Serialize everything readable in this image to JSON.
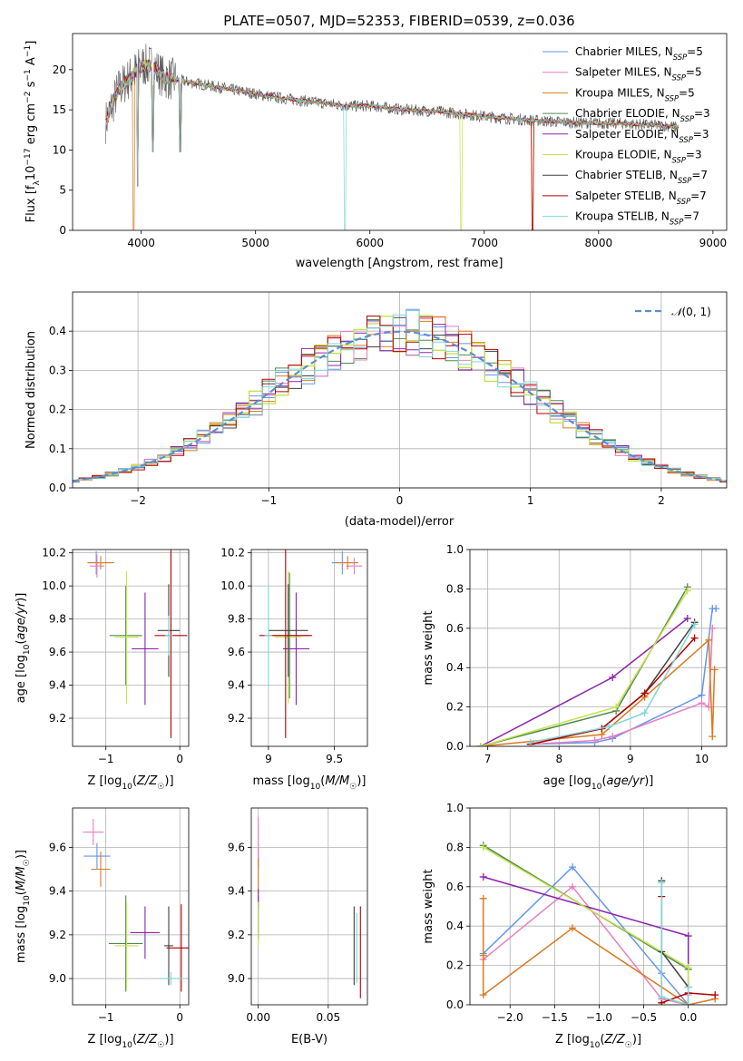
{
  "figure": {
    "title": "PLATE=0507, MJD=52353, FIBERID=0539, z=0.036"
  },
  "models": [
    {
      "name": "Chabrier MILES",
      "nssp": "5",
      "color": "#6495ed"
    },
    {
      "name": "Salpeter MILES",
      "nssp": "5",
      "color": "#e87fbf"
    },
    {
      "name": "Kroupa MILES",
      "nssp": "5",
      "color": "#d97a1f"
    },
    {
      "name": "Chabrier ELODIE",
      "nssp": "3",
      "color": "#4d8a4d"
    },
    {
      "name": "Salpeter ELODIE",
      "nssp": "3",
      "color": "#8e24aa"
    },
    {
      "name": "Kroupa ELODIE",
      "nssp": "3",
      "color": "#c6e24a"
    },
    {
      "name": "Chabrier STELIB",
      "nssp": "7",
      "color": "#404040"
    },
    {
      "name": "Salpeter STELIB",
      "nssp": "7",
      "color": "#b30000"
    },
    {
      "name": "Kroupa STELIB",
      "nssp": "7",
      "color": "#7fd6d6"
    }
  ],
  "chart_data": [
    {
      "id": "spectrum",
      "type": "line",
      "xlabel": "wavelength [Angstrom, rest frame]",
      "ylabel": "Flux [f_λ 10^-17 erg cm^-2 s^-1 A^-1]",
      "xlim": [
        3400,
        9120
      ],
      "ylim": [
        0,
        24.5
      ],
      "xticks": [
        4000,
        5000,
        6000,
        7000,
        8000,
        9000
      ],
      "yticks": [
        0,
        5,
        10,
        15,
        20
      ],
      "grid": false,
      "legend": "top-right",
      "envelope": {
        "x": [
          3690,
          3800,
          3900,
          4000,
          4100,
          4200,
          4400,
          4600,
          4800,
          5000,
          5200,
          5500,
          5800,
          6000,
          6300,
          6600,
          7000,
          7400,
          7800,
          8200,
          8600,
          8700
        ],
        "y": [
          13.5,
          17.5,
          19.0,
          20.5,
          20.5,
          19.0,
          18.5,
          18.0,
          17.5,
          17.0,
          16.5,
          16.0,
          15.5,
          15.5,
          15.0,
          14.8,
          14.2,
          13.7,
          13.4,
          13.3,
          13.0,
          12.8
        ]
      },
      "absorption_dips": [
        {
          "x": 3934,
          "y": 0
        },
        {
          "x": 3969,
          "y": 5.5
        },
        {
          "x": 4101,
          "y": 9.8
        },
        {
          "x": 4340,
          "y": 9.8
        },
        {
          "x": 5780,
          "y": 0
        },
        {
          "x": 6800,
          "y": 0
        },
        {
          "x": 7420,
          "y": 0
        }
      ]
    },
    {
      "id": "residuals",
      "type": "histogram",
      "xlabel": "(data-model)/error",
      "ylabel": "Normed distribution",
      "xlim": [
        -2.5,
        2.5
      ],
      "ylim": [
        0,
        0.5
      ],
      "xticks": [
        -2,
        -1,
        0,
        1,
        2
      ],
      "yticks": [
        0.0,
        0.1,
        0.2,
        0.3,
        0.4
      ],
      "grid": true,
      "legend": "top-right",
      "reference_curve": {
        "name": "N(0,1)",
        "mean": 0,
        "sigma": 1
      },
      "bin_width": 0.1
    },
    {
      "id": "age-vs-z",
      "type": "errorbar",
      "xlabel": "Z [log10(Z/Z☉)]",
      "ylabel": "age [log10(age/yr)]",
      "xlim": [
        -1.45,
        0.12
      ],
      "ylim": [
        9.03,
        10.22
      ],
      "xticks": [
        -1,
        0
      ],
      "yticks": [
        9.2,
        9.4,
        9.6,
        9.8,
        10.0,
        10.2
      ],
      "grid": true,
      "points": [
        {
          "x": -1.13,
          "y": 10.14,
          "xerr": 0.1,
          "yerr": 0.07
        },
        {
          "x": -1.12,
          "y": 10.12,
          "xerr": 0.1,
          "yerr": 0.07
        },
        {
          "x": -1.07,
          "y": 10.14,
          "xerr": 0.18,
          "yerr": 0.04
        },
        {
          "x": -0.73,
          "y": 9.7,
          "xerr": 0.22,
          "yerr": 0.3
        },
        {
          "x": -0.47,
          "y": 9.62,
          "xerr": 0.18,
          "yerr": 0.34
        },
        {
          "x": -0.72,
          "y": 9.69,
          "xerr": 0.16,
          "yerr": 0.4
        },
        {
          "x": -0.15,
          "y": 9.73,
          "xerr": 0.15,
          "yerr": 0.28
        },
        {
          "x": -0.12,
          "y": 9.7,
          "xerr": 0.22,
          "yerr": 0.62
        },
        {
          "x": -0.15,
          "y": 9.7,
          "xerr": 0.05,
          "yerr": 0.12
        }
      ]
    },
    {
      "id": "age-vs-mass",
      "type": "errorbar",
      "xlabel": "mass [log10(M/M☉)]",
      "ylabel": "",
      "xlim": [
        8.87,
        9.75
      ],
      "ylim": [
        9.03,
        10.22
      ],
      "xticks": [
        9.0,
        9.5
      ],
      "yticks": [
        9.2,
        9.4,
        9.6,
        9.8,
        10.0,
        10.2
      ],
      "grid": true,
      "points": [
        {
          "x": 9.56,
          "y": 10.14,
          "xerr": 0.08,
          "yerr": 0.07
        },
        {
          "x": 9.65,
          "y": 10.12,
          "xerr": 0.06,
          "yerr": 0.05
        },
        {
          "x": 9.6,
          "y": 10.14,
          "xerr": 0.08,
          "yerr": 0.04
        },
        {
          "x": 9.16,
          "y": 9.7,
          "xerr": 0.15,
          "yerr": 0.38
        },
        {
          "x": 9.21,
          "y": 9.62,
          "xerr": 0.1,
          "yerr": 0.34
        },
        {
          "x": 9.15,
          "y": 9.69,
          "xerr": 0.1,
          "yerr": 0.4
        },
        {
          "x": 9.15,
          "y": 9.73,
          "xerr": 0.15,
          "yerr": 0.28
        },
        {
          "x": 9.13,
          "y": 9.7,
          "xerr": 0.2,
          "yerr": 0.62
        },
        {
          "x": 9.0,
          "y": 9.7,
          "xerr": 0.03,
          "yerr": 0.31
        }
      ]
    },
    {
      "id": "mass-weight-vs-age",
      "type": "line",
      "xlabel": "age [log10(age/yr)]",
      "ylabel": "mass weight",
      "xlim": [
        6.75,
        10.35
      ],
      "ylim": [
        0,
        1.0
      ],
      "xticks": [
        7,
        8,
        9,
        10
      ],
      "yticks": [
        0.0,
        0.2,
        0.4,
        0.6,
        0.8,
        1.0
      ],
      "grid": true,
      "series": [
        {
          "model": 0,
          "x": [
            7.6,
            8.5,
            8.75,
            10.0,
            10.15,
            10.2
          ],
          "y": [
            0.01,
            0.02,
            0.04,
            0.26,
            0.7,
            0.7
          ]
        },
        {
          "model": 1,
          "x": [
            7.6,
            8.5,
            8.75,
            10.0,
            10.1,
            10.15
          ],
          "y": [
            0.01,
            0.03,
            0.05,
            0.22,
            0.2,
            0.6
          ]
        },
        {
          "model": 2,
          "x": [
            6.9,
            8.6,
            9.2,
            10.1,
            10.15,
            10.18
          ],
          "y": [
            0.0,
            0.06,
            0.25,
            0.54,
            0.05,
            0.39
          ]
        },
        {
          "model": 3,
          "x": [
            6.9,
            8.8,
            9.8
          ],
          "y": [
            0.0,
            0.18,
            0.81
          ]
        },
        {
          "model": 4,
          "x": [
            6.9,
            8.75,
            9.8
          ],
          "y": [
            0.0,
            0.35,
            0.65
          ]
        },
        {
          "model": 5,
          "x": [
            6.9,
            8.8,
            9.8
          ],
          "y": [
            0.0,
            0.2,
            0.79
          ]
        },
        {
          "model": 6,
          "x": [
            7.6,
            8.6,
            9.2,
            9.9
          ],
          "y": [
            0.01,
            0.09,
            0.27,
            0.63
          ]
        },
        {
          "model": 7,
          "x": [
            7.6,
            8.6,
            9.2,
            9.9
          ],
          "y": [
            0.01,
            0.09,
            0.27,
            0.55
          ]
        },
        {
          "model": 8,
          "x": [
            7.6,
            8.7,
            9.2,
            9.9
          ],
          "y": [
            0.02,
            0.1,
            0.17,
            0.62
          ]
        }
      ]
    },
    {
      "id": "mass-vs-z",
      "type": "errorbar",
      "xlabel": "Z [log10(Z/Z☉)]",
      "ylabel": "mass [log10(M/M☉)]",
      "xlim": [
        -1.45,
        0.12
      ],
      "ylim": [
        8.88,
        9.78
      ],
      "xticks": [
        -1,
        0
      ],
      "yticks": [
        9.0,
        9.2,
        9.4,
        9.6
      ],
      "grid": true,
      "points": [
        {
          "x": -1.12,
          "y": 9.56,
          "xerr": 0.18,
          "yerr": 0.06
        },
        {
          "x": -1.17,
          "y": 9.67,
          "xerr": 0.14,
          "yerr": 0.06
        },
        {
          "x": -1.07,
          "y": 9.5,
          "xerr": 0.13,
          "yerr": 0.08
        },
        {
          "x": -0.73,
          "y": 9.16,
          "xerr": 0.23,
          "yerr": 0.22
        },
        {
          "x": -0.47,
          "y": 9.21,
          "xerr": 0.2,
          "yerr": 0.12
        },
        {
          "x": -0.72,
          "y": 9.15,
          "xerr": 0.16,
          "yerr": 0.2
        },
        {
          "x": -0.15,
          "y": 9.15,
          "xerr": 0.06,
          "yerr": 0.18
        },
        {
          "x": 0.02,
          "y": 9.14,
          "xerr": 0.2,
          "yerr": 0.2
        },
        {
          "x": -0.12,
          "y": 9.0,
          "xerr": 0.16,
          "yerr": 0.03
        }
      ]
    },
    {
      "id": "mass-vs-ebv",
      "type": "errorbar",
      "xlabel": "E(B-V)",
      "ylabel": "",
      "xlim": [
        -0.005,
        0.078
      ],
      "ylim": [
        8.88,
        9.78
      ],
      "xticks": [
        0.0,
        0.05
      ],
      "xticklabels": [
        "0.00",
        "0.05"
      ],
      "yticks": [
        9.0,
        9.2,
        9.4,
        9.6
      ],
      "grid": true,
      "points": [
        {
          "x": 0.0,
          "y": 9.56,
          "xerr": 0.0,
          "yerr": 0.06
        },
        {
          "x": 0.0,
          "y": 9.64,
          "xerr": 0.0,
          "yerr": 0.1
        },
        {
          "x": 0.0,
          "y": 9.47,
          "xerr": 0.0,
          "yerr": 0.08
        },
        {
          "x": 0.0,
          "y": 9.28,
          "xerr": 0.0,
          "yerr": 0.1
        },
        {
          "x": 0.0,
          "y": 9.36,
          "xerr": 0.0,
          "yerr": 0.05
        },
        {
          "x": 0.0,
          "y": 9.25,
          "xerr": 0.0,
          "yerr": 0.1
        },
        {
          "x": 0.0685,
          "y": 9.15,
          "xerr": 0.0,
          "yerr": 0.18
        },
        {
          "x": 0.073,
          "y": 9.12,
          "xerr": 0.0,
          "yerr": 0.21
        },
        {
          "x": 0.0705,
          "y": 9.14,
          "xerr": 0.0,
          "yerr": 0.16
        }
      ]
    },
    {
      "id": "mass-weight-vs-z",
      "type": "line",
      "xlabel": "Z [log10(Z/Z☉)]",
      "ylabel": "mass weight",
      "xlim": [
        -2.45,
        0.43
      ],
      "ylim": [
        0,
        1.0
      ],
      "xticks": [
        -2.0,
        -1.5,
        -1.0,
        -0.5,
        0.0
      ],
      "xticklabels": [
        "−2.0",
        "−1.5",
        "−1.0",
        "−0.5",
        "0.0"
      ],
      "yticks": [
        0.0,
        0.2,
        0.4,
        0.6,
        0.8,
        1.0
      ],
      "grid": true,
      "series": [
        {
          "model": 0,
          "x": [
            -2.3,
            -1.3,
            -0.3,
            0.0,
            0.0
          ],
          "y": [
            0.26,
            0.7,
            0.16,
            0.0,
            0.06
          ]
        },
        {
          "model": 1,
          "x": [
            -2.3,
            -1.3,
            -0.3,
            0.0,
            0.0
          ],
          "y": [
            0.23,
            0.6,
            0.03,
            0.0,
            0.05
          ]
        },
        {
          "model": 2,
          "x": [
            -2.3,
            -2.3,
            -2.3,
            -1.3,
            0.0,
            0.3
          ],
          "y": [
            0.54,
            0.25,
            0.05,
            0.39,
            0.0,
            0.03
          ]
        },
        {
          "model": 3,
          "x": [
            -2.3,
            0.0,
            0.0
          ],
          "y": [
            0.81,
            0.18,
            0.0
          ]
        },
        {
          "model": 4,
          "x": [
            -2.3,
            0.0,
            0.0
          ],
          "y": [
            0.65,
            0.35,
            0.0
          ]
        },
        {
          "model": 5,
          "x": [
            -2.3,
            0.0,
            0.0
          ],
          "y": [
            0.8,
            0.19,
            0.0
          ]
        },
        {
          "model": 6,
          "x": [
            -0.3,
            -0.3,
            0.0
          ],
          "y": [
            0.63,
            0.27,
            0.09
          ]
        },
        {
          "model": 7,
          "x": [
            -0.3,
            -0.3,
            0.0,
            0.3
          ],
          "y": [
            0.55,
            0.01,
            0.06,
            0.05
          ]
        },
        {
          "model": 8,
          "x": [
            -0.3,
            -0.3,
            0.0,
            0.0
          ],
          "y": [
            0.62,
            0.04,
            0.0,
            0.09
          ]
        }
      ]
    }
  ]
}
